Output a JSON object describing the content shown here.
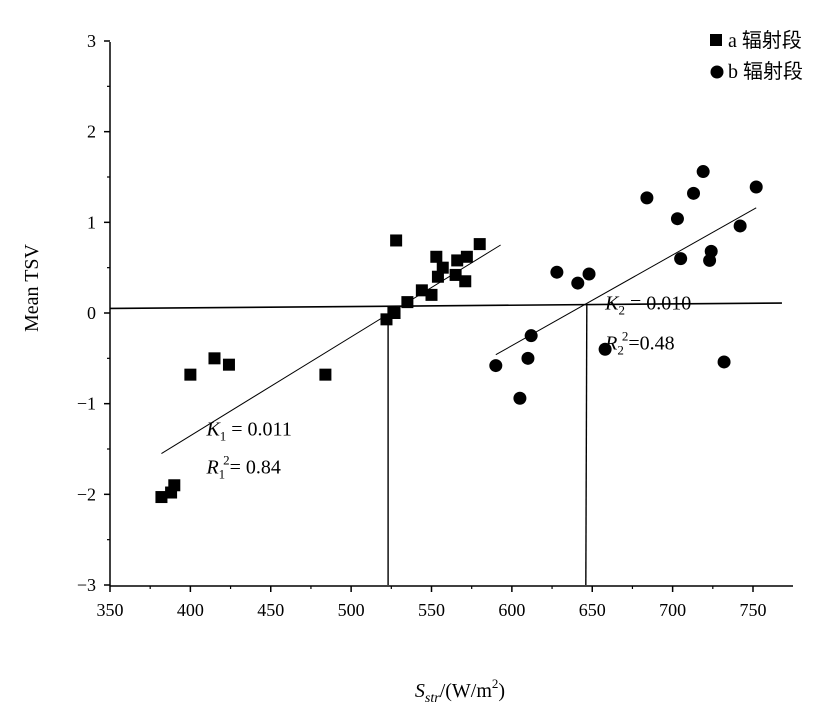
{
  "chart_data": {
    "type": "scatter",
    "xlabel": {
      "main": "S",
      "sub": "str",
      "rest": "/(W/m",
      "sup": "2",
      "close": ")"
    },
    "ylabel": "Mean TSV",
    "xlim": [
      350,
      770
    ],
    "ylim": [
      -3,
      3
    ],
    "xticks": [
      "350",
      "400",
      "450",
      "500",
      "550",
      "600",
      "650",
      "700",
      "750"
    ],
    "yticks": [
      "3",
      "2",
      "1",
      "0",
      "−1",
      "−2",
      "−3"
    ],
    "grid": false,
    "legend_position": "top-right",
    "series": [
      {
        "name": "a 辐射段",
        "marker": "square",
        "x": [
          382,
          388,
          390,
          400,
          415,
          424,
          484,
          522,
          527,
          528,
          535,
          544,
          550,
          553,
          554,
          557,
          565,
          566,
          571,
          572,
          580
        ],
        "y": [
          -2.03,
          -1.98,
          -1.9,
          -0.68,
          -0.5,
          -0.57,
          -0.68,
          -0.07,
          0.0,
          0.8,
          0.12,
          0.25,
          0.2,
          0.62,
          0.4,
          0.5,
          0.42,
          0.58,
          0.35,
          0.62,
          0.76
        ]
      },
      {
        "name": "b 辐射段",
        "marker": "circle",
        "x": [
          590,
          605,
          610,
          612,
          628,
          641,
          648,
          658,
          684,
          703,
          705,
          713,
          719,
          723,
          724,
          742,
          752,
          732
        ],
        "y": [
          -0.58,
          -0.94,
          -0.5,
          -0.25,
          0.45,
          0.33,
          0.43,
          -0.4,
          1.27,
          1.04,
          0.6,
          1.32,
          1.56,
          0.58,
          0.68,
          0.96,
          1.39,
          -0.54
        ]
      }
    ],
    "fit_lines": [
      {
        "x": [
          382,
          593
        ],
        "y": [
          -1.55,
          0.75
        ]
      },
      {
        "x": [
          590,
          752
        ],
        "y": [
          -0.46,
          1.16
        ]
      }
    ],
    "reference_lines": {
      "horizontal": {
        "x": [
          350,
          768
        ],
        "y": [
          0.05,
          0.11
        ]
      },
      "vertical": [
        {
          "x": 523,
          "y": [
            -3,
            0.08
          ]
        },
        {
          "x": 646,
          "y": [
            -3,
            0.1
          ]
        }
      ]
    },
    "annotations": [
      {
        "var": "K",
        "sub": "1",
        "rest": " = 0.011",
        "ax": 410,
        "ay": -1.35
      },
      {
        "var": "R",
        "sub": "1",
        "sup": "2",
        "rest": "= 0.84",
        "ax": 410,
        "ay": -1.77
      },
      {
        "var": "K",
        "sub": "2",
        "rest": " = 0.010",
        "ax": 658,
        "ay": 0.04
      },
      {
        "var": "R",
        "sub": "2",
        "sup": "2",
        "rest": "=0.48",
        "ax": 658,
        "ay": -0.4
      }
    ]
  }
}
